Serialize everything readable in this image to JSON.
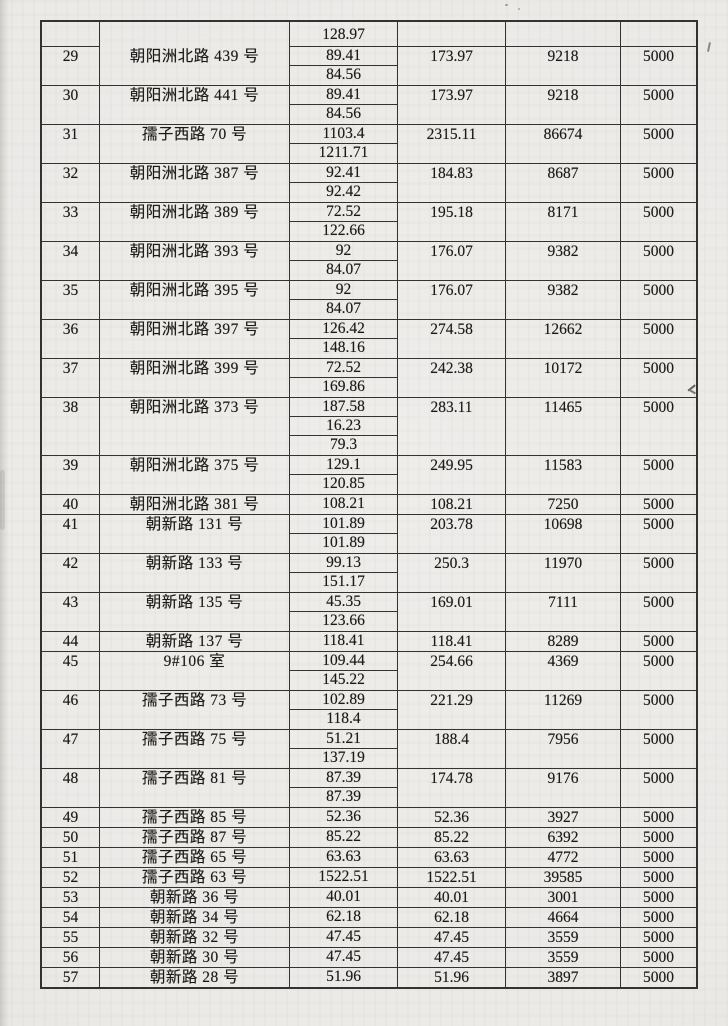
{
  "colors": {
    "paper": "#eceae7",
    "ink": "#1b1a18",
    "line": "#343230"
  },
  "table": {
    "carry_row": {
      "no": "",
      "address": "",
      "areas": [
        "128.97"
      ],
      "total": "",
      "amount": "",
      "rate": ""
    },
    "rows": [
      {
        "no": "29",
        "address": "朝阳洲北路 439 号",
        "areas": [
          "89.41",
          "84.56"
        ],
        "total": "173.97",
        "amount": "9218",
        "rate": "5000"
      },
      {
        "no": "30",
        "address": "朝阳洲北路 441 号",
        "areas": [
          "89.41",
          "84.56"
        ],
        "total": "173.97",
        "amount": "9218",
        "rate": "5000"
      },
      {
        "no": "31",
        "address": "孺子西路 70 号",
        "areas": [
          "1103.4",
          "1211.71"
        ],
        "total": "2315.11",
        "amount": "86674",
        "rate": "5000"
      },
      {
        "no": "32",
        "address": "朝阳洲北路 387 号",
        "areas": [
          "92.41",
          "92.42"
        ],
        "total": "184.83",
        "amount": "8687",
        "rate": "5000"
      },
      {
        "no": "33",
        "address": "朝阳洲北路 389 号",
        "areas": [
          "72.52",
          "122.66"
        ],
        "total": "195.18",
        "amount": "8171",
        "rate": "5000"
      },
      {
        "no": "34",
        "address": "朝阳洲北路 393 号",
        "areas": [
          "92",
          "84.07"
        ],
        "total": "176.07",
        "amount": "9382",
        "rate": "5000"
      },
      {
        "no": "35",
        "address": "朝阳洲北路 395 号",
        "areas": [
          "92",
          "84.07"
        ],
        "total": "176.07",
        "amount": "9382",
        "rate": "5000"
      },
      {
        "no": "36",
        "address": "朝阳洲北路 397 号",
        "areas": [
          "126.42",
          "148.16"
        ],
        "total": "274.58",
        "amount": "12662",
        "rate": "5000"
      },
      {
        "no": "37",
        "address": "朝阳洲北路 399 号",
        "areas": [
          "72.52",
          "169.86"
        ],
        "total": "242.38",
        "amount": "10172",
        "rate": "5000"
      },
      {
        "no": "38",
        "address": "朝阳洲北路 373 号",
        "areas": [
          "187.58",
          "16.23",
          "79.3"
        ],
        "total": "283.11",
        "amount": "11465",
        "rate": "5000"
      },
      {
        "no": "39",
        "address": "朝阳洲北路 375 号",
        "areas": [
          "129.1",
          "120.85"
        ],
        "total": "249.95",
        "amount": "11583",
        "rate": "5000"
      },
      {
        "no": "40",
        "address": "朝阳洲北路 381 号",
        "areas": [
          "108.21"
        ],
        "total": "108.21",
        "amount": "7250",
        "rate": "5000"
      },
      {
        "no": "41",
        "address": "朝新路 131 号",
        "areas": [
          "101.89",
          "101.89"
        ],
        "total": "203.78",
        "amount": "10698",
        "rate": "5000"
      },
      {
        "no": "42",
        "address": "朝新路 133 号",
        "areas": [
          "99.13",
          "151.17"
        ],
        "total": "250.3",
        "amount": "11970",
        "rate": "5000"
      },
      {
        "no": "43",
        "address": "朝新路 135 号",
        "areas": [
          "45.35",
          "123.66"
        ],
        "total": "169.01",
        "amount": "7111",
        "rate": "5000"
      },
      {
        "no": "44",
        "address": "朝新路 137 号",
        "areas": [
          "118.41"
        ],
        "total": "118.41",
        "amount": "8289",
        "rate": "5000"
      },
      {
        "no": "45",
        "address": "9#106 室",
        "areas": [
          "109.44",
          "145.22"
        ],
        "total": "254.66",
        "amount": "4369",
        "rate": "5000"
      },
      {
        "no": "46",
        "address": "孺子西路 73 号",
        "areas": [
          "102.89",
          "118.4"
        ],
        "total": "221.29",
        "amount": "11269",
        "rate": "5000"
      },
      {
        "no": "47",
        "address": "孺子西路 75 号",
        "areas": [
          "51.21",
          "137.19"
        ],
        "total": "188.4",
        "amount": "7956",
        "rate": "5000"
      },
      {
        "no": "48",
        "address": "孺子西路 81 号",
        "areas": [
          "87.39",
          "87.39"
        ],
        "total": "174.78",
        "amount": "9176",
        "rate": "5000"
      },
      {
        "no": "49",
        "address": "孺子西路 85 号",
        "areas": [
          "52.36"
        ],
        "total": "52.36",
        "amount": "3927",
        "rate": "5000"
      },
      {
        "no": "50",
        "address": "孺子西路 87 号",
        "areas": [
          "85.22"
        ],
        "total": "85.22",
        "amount": "6392",
        "rate": "5000"
      },
      {
        "no": "51",
        "address": "孺子西路 65 号",
        "areas": [
          "63.63"
        ],
        "total": "63.63",
        "amount": "4772",
        "rate": "5000"
      },
      {
        "no": "52",
        "address": "孺子西路 63 号",
        "areas": [
          "1522.51"
        ],
        "total": "1522.51",
        "amount": "39585",
        "rate": "5000"
      },
      {
        "no": "53",
        "address": "朝新路 36 号",
        "areas": [
          "40.01"
        ],
        "total": "40.01",
        "amount": "3001",
        "rate": "5000"
      },
      {
        "no": "54",
        "address": "朝新路 34 号",
        "areas": [
          "62.18"
        ],
        "total": "62.18",
        "amount": "4664",
        "rate": "5000"
      },
      {
        "no": "55",
        "address": "朝新路 32 号",
        "areas": [
          "47.45"
        ],
        "total": "47.45",
        "amount": "3559",
        "rate": "5000"
      },
      {
        "no": "56",
        "address": "朝新路 30 号",
        "areas": [
          "47.45"
        ],
        "total": "47.45",
        "amount": "3559",
        "rate": "5000"
      },
      {
        "no": "57",
        "address": "朝新路 28 号",
        "areas": [
          "51.96"
        ],
        "total": "51.96",
        "amount": "3897",
        "rate": "5000"
      }
    ]
  }
}
